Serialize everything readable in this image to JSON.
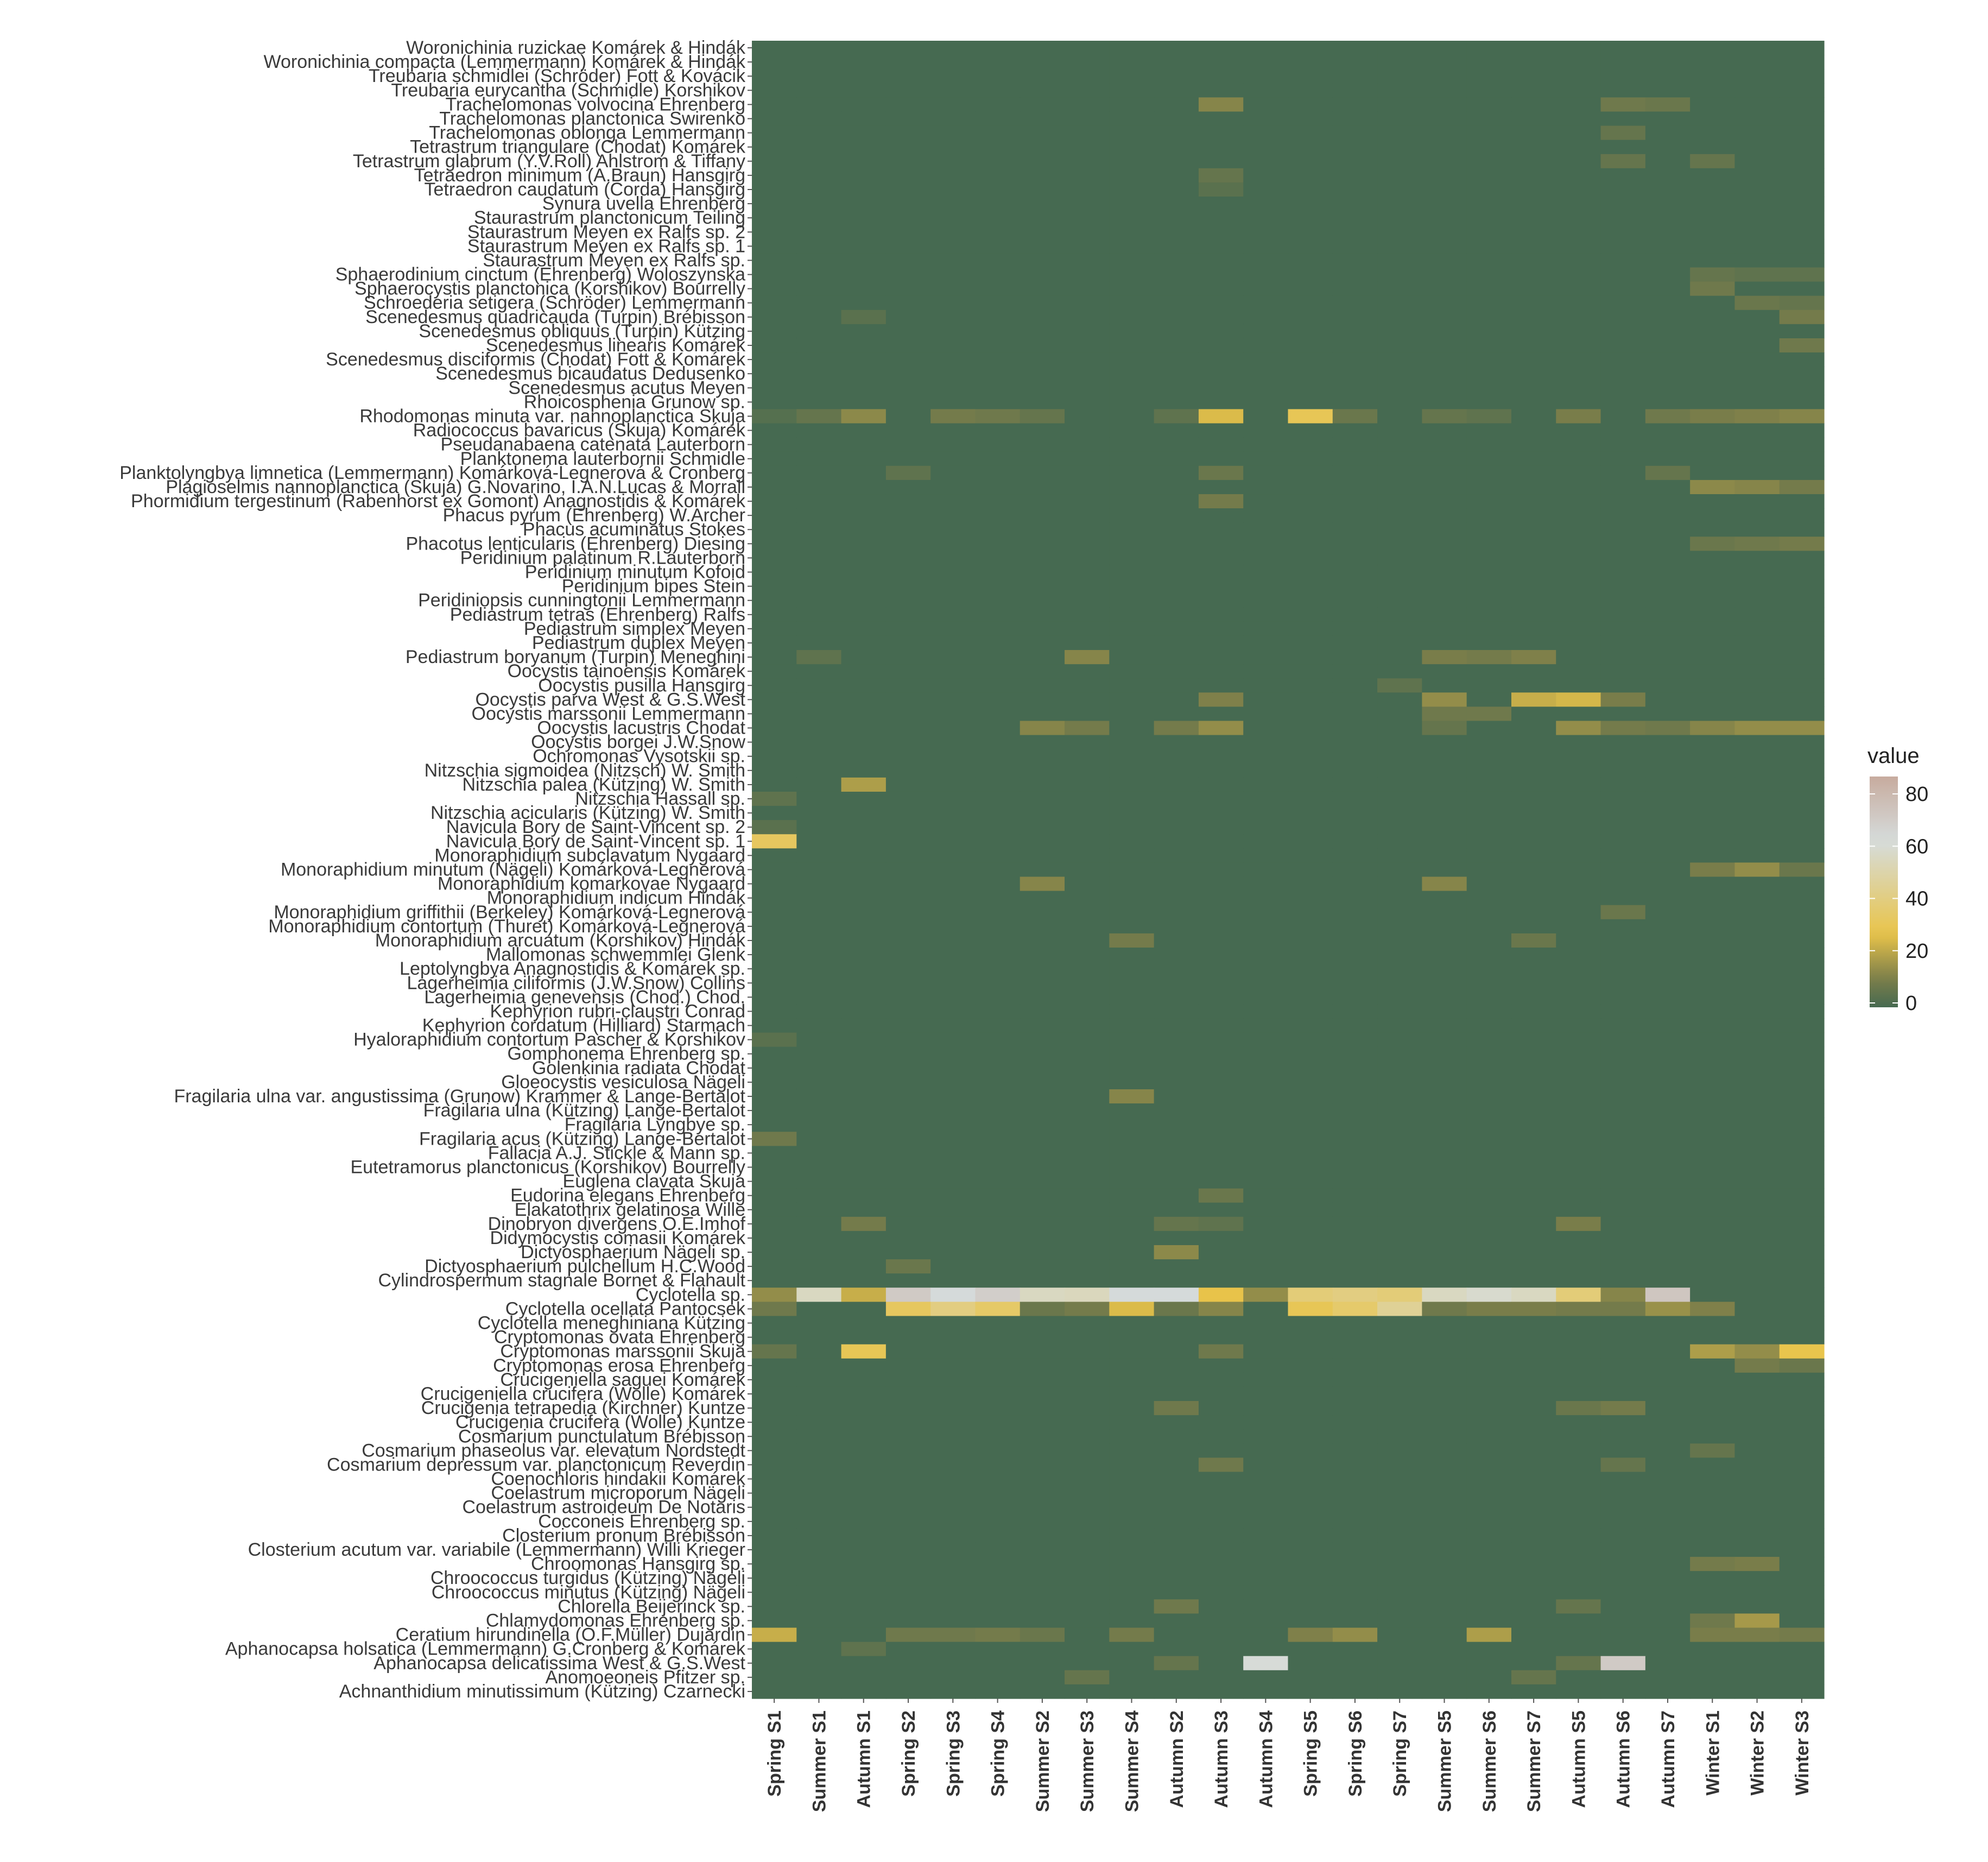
{
  "chart_data": {
    "type": "heatmap",
    "title": "",
    "xlabel": "",
    "ylabel": "",
    "x": [
      "Spring S1",
      "Summer S1",
      "Autumn S1",
      "Spring S2",
      "Spring S3",
      "Spring S4",
      "Summer S2",
      "Summer S3",
      "Summer S4",
      "Autumn S2",
      "Autumn S3",
      "Autumn S4",
      "Spring S5",
      "Spring S6",
      "Spring S7",
      "Summer S5",
      "Summer S6",
      "Summer S7",
      "Autumn S5",
      "Autumn S6",
      "Autumn S7",
      "Winter S1",
      "Winter S2",
      "Winter S3"
    ],
    "y": [
      "Woronichinia ruzickae Komárek & Hindák",
      "Woronichinia compacta (Lemmermann) Komárek & Hindák",
      "Treubaria schmidlei (Schröder) Fott & Kovácik",
      "Treubaria eurycantha (Schmidle) Korshikov",
      "Trachelomonas volvocina Ehrenberg",
      "Trachelomonas planctonica Swirenko",
      "Trachelomonas oblonga Lemmermann",
      "Tetrastrum triangulare (Chodat) Komárek",
      "Tetrastrum glabrum (Y.V.Roll) Ahlstrom & Tiffany",
      "Tetraedron minimum (A.Braun) Hansgirg",
      "Tetraedron caudatum (Corda) Hansgirg",
      "Synura uvella Ehrenberg",
      "Staurastrum planctonicum Teiling",
      "Staurastrum Meyen ex Ralfs sp. 2",
      "Staurastrum Meyen ex Ralfs sp. 1",
      "Staurastrum Meyen ex Ralfs sp.",
      "Sphaerodinium cinctum (Ehrenberg) Woloszynska",
      "Sphaerocystis planctonica (Korshikov) Bourrelly",
      "Schroederia setigera (Schröder) Lemmermann",
      "Scenedesmus quadricauda (Turpin) Brébisson",
      "Scenedesmus obliquus (Turpin) Kützing",
      "Scenedesmus linearis Komárek",
      "Scenedesmus disciformis (Chodat) Fott & Komárek",
      "Scenedesmus bicaudatus Dedusenko",
      "Scenedesmus acutus Meyen",
      "Rhoicosphenia Grunow sp.",
      "Rhodomonas minuta var. nannoplanctica Skuja",
      "Radiococcus bavaricus (Skuja) Komárek",
      "Pseudanabaena catenata Lauterborn",
      "Planktonema lauterbornii Schmidle",
      "Planktolyngbya limnetica (Lemmermann) Komárková-Legnerová & Cronberg",
      "Plagioselmis nannoplanctica (Skuja) G.Novarino, I.A.N.Lucas & Morrall",
      "Phormidium tergestinum (Rabenhorst ex Gomont) Anagnostidis & Komárek",
      "Phacus pyrum (Ehrenberg) W.Archer",
      "Phacus acuminatus Stokes",
      "Phacotus lenticularis (Ehrenberg) Diesing",
      "Peridinium palatinum R.Lauterborn",
      "Peridinium minutum Kofoid",
      "Peridinium bipes Stein",
      "Peridiniopsis cunningtonii Lemmermann",
      "Pediastrum tetras (Ehrenberg) Ralfs",
      "Pediastrum simplex Meyen",
      "Pediastrum duplex Meyen",
      "Pediastrum boryanum (Turpin) Meneghini",
      "Oocystis tainoensis Komárek",
      "Oocystis pusilla Hansgirg",
      "Oocystis parva West & G.S.West",
      "Oocystis marssonii Lemmermann",
      "Oocystis lacustris Chodat",
      "Oocystis borgei J.W.Snow",
      "Ochromonas Vysotskii sp.",
      "Nitzschia sigmoidea (Nitzsch) W. Smith",
      "Nitzschia palea (Kützing) W. Smith",
      "Nitzschia Hassall sp.",
      "Nitzschia acicularis (Kützing) W. Smith",
      "Navicula Bory de Saint-Vincent sp. 2",
      "Navicula Bory de Saint-Vincent sp. 1",
      "Monoraphidium subclavatum Nygaard",
      "Monoraphidium minutum (Nägeli) Komárková-Legnerová",
      "Monoraphidium komarkovae Nygaard",
      "Monoraphidium indicum Hindák",
      "Monoraphidium griffithii (Berkeley) Komárková-Legnerová",
      "Monoraphidium contortum (Thuret) Komárková-Legnerová",
      "Monoraphidium arcuatum (Korshikov) Hindák",
      "Mallomonas schwemmlei Glenk",
      "Leptolyngbya Anagnostidis & Komárek sp.",
      "Lagerheimia ciliformis (J.W.Snow) Collins",
      "Lagerheimia genevensis (Chod.) Chod.",
      "Kephyrion rubri-claustri Conrad",
      "Kephyrion cordatum (Hilliard) Starmach",
      "Hyaloraphidium contortum Pascher & Korshikov",
      "Gomphonema Ehrenberg sp.",
      "Golenkinia radiata Chodat",
      "Gloeocystis vesiculosa Nägeli",
      "Fragilaria ulna var. angustissima (Grunow) Krammer & Lange-Bertalot",
      "Fragilaria ulna (Kützing) Lange-Bertalot",
      "Fragilaria Lyngbye sp.",
      "Fragilaria acus (Kützing) Lange-Bertalot",
      "Fallacia A.J. Stickle & Mann sp.",
      "Eutetramorus planctonicus (Korshikov) Bourrelly",
      "Euglena clavata Skuja",
      "Eudorina elegans Ehrenberg",
      "Elakatothrix gelatinosa Wille",
      "Dinobryon divergens O.E.Imhof",
      "Didymocystis comasii Komárek",
      "Dictyosphaerium Nägeli sp.",
      "Dictyosphaerium pulchellum H.C.Wood",
      "Cylindrospermum stagnale Bornet & Flahault",
      "Cyclotella sp.",
      "Cyclotella ocellata Pantocsek",
      "Cyclotella meneghiniana Kützing",
      "Cryptomonas ovata Ehrenberg",
      "Cryptomonas marssonii Skuja",
      "Cryptomonas erosa Ehrenberg",
      "Crucigeniella saguei Komárek",
      "Crucigeniella crucifera (Wolle) Komárek",
      "Crucigenia tetrapedia (Kirchner) Kuntze",
      "Crucigenia crucifera (Wolle) Kuntze",
      "Cosmarium punctulatum Brébisson",
      "Cosmarium phaseolus var. elevatum Nordstedt",
      "Cosmarium depressum var. planctonicum Reverdin",
      "Coenochloris hindakii Komárek",
      "Coelastrum microporum Nägeli",
      "Coelastrum astroideum De Notaris",
      "Cocconeis Ehrenberg sp.",
      "Closterium pronum Brébisson",
      "Closterium acutum var. variabile (Lemmermann) Willi Krieger",
      "Chroomonas Hansgirg sp.",
      "Chroococcus turgidus (Kützing) Nägeli",
      "Chroococcus minutus (Kützing) Nägeli",
      "Chlorella Beijerinck sp.",
      "Chlamydomonas Ehrenberg sp.",
      "Ceratium hirundinella (O.F.Müller) Dujardin",
      "Aphanocapsa holsatica (Lemmermann) G.Cronberg & Komárek",
      "Aphanocapsa delicatissima West & G.S.West",
      "Anomoeoneis Pfitzer sp.",
      "Achnanthidium minutissimum (Kützing) Czarnecki"
    ],
    "default_value": 0,
    "cells": [
      [
        4,
        10,
        12,
        6
      ],
      [
        4,
        19,
        8,
        6
      ],
      [
        4,
        20,
        7,
        6
      ],
      [
        6,
        19,
        6,
        6
      ],
      [
        8,
        19,
        6,
        6
      ],
      [
        8,
        21,
        6,
        6
      ],
      [
        9,
        10,
        6,
        6
      ],
      [
        10,
        10,
        4,
        6
      ],
      [
        16,
        21,
        6,
        6
      ],
      [
        16,
        22,
        5,
        6
      ],
      [
        16,
        23,
        5,
        6
      ],
      [
        17,
        21,
        8,
        6
      ],
      [
        18,
        22,
        7,
        6
      ],
      [
        18,
        23,
        6,
        6
      ],
      [
        19,
        23,
        9,
        6
      ],
      [
        19,
        2,
        4,
        6
      ],
      [
        21,
        23,
        8,
        6
      ],
      [
        26,
        0,
        3,
        6
      ],
      [
        26,
        1,
        6,
        6
      ],
      [
        26,
        2,
        13,
        6
      ],
      [
        26,
        4,
        9,
        6
      ],
      [
        26,
        5,
        8,
        6
      ],
      [
        26,
        6,
        6,
        6
      ],
      [
        26,
        9,
        5,
        6
      ],
      [
        26,
        10,
        25,
        6
      ],
      [
        26,
        12,
        30,
        6
      ],
      [
        26,
        13,
        7,
        6
      ],
      [
        26,
        15,
        6,
        6
      ],
      [
        26,
        16,
        5,
        6
      ],
      [
        26,
        18,
        10,
        6
      ],
      [
        26,
        20,
        8,
        6
      ],
      [
        26,
        21,
        10,
        6
      ],
      [
        26,
        22,
        11,
        6
      ],
      [
        26,
        23,
        12,
        6
      ],
      [
        30,
        3,
        5,
        6
      ],
      [
        30,
        10,
        7,
        6
      ],
      [
        30,
        20,
        6,
        6
      ],
      [
        31,
        21,
        13,
        6
      ],
      [
        31,
        22,
        12,
        6
      ],
      [
        31,
        23,
        9,
        6
      ],
      [
        32,
        10,
        9,
        6
      ],
      [
        35,
        21,
        7,
        6
      ],
      [
        35,
        22,
        8,
        6
      ],
      [
        35,
        23,
        9,
        6
      ],
      [
        43,
        1,
        5,
        6
      ],
      [
        43,
        7,
        12,
        6
      ],
      [
        43,
        15,
        10,
        6
      ],
      [
        43,
        16,
        9,
        6
      ],
      [
        43,
        17,
        11,
        6
      ],
      [
        45,
        14,
        5,
        6
      ],
      [
        46,
        10,
        11,
        6
      ],
      [
        46,
        15,
        14,
        6
      ],
      [
        46,
        17,
        22,
        6
      ],
      [
        46,
        18,
        24,
        6
      ],
      [
        46,
        19,
        10,
        6
      ],
      [
        47,
        15,
        8,
        6
      ],
      [
        47,
        16,
        8,
        6
      ],
      [
        48,
        6,
        12,
        6
      ],
      [
        48,
        7,
        9,
        6
      ],
      [
        48,
        9,
        9,
        6
      ],
      [
        48,
        10,
        14,
        6
      ],
      [
        48,
        15,
        6,
        6
      ],
      [
        48,
        18,
        14,
        6
      ],
      [
        48,
        19,
        9,
        6
      ],
      [
        48,
        20,
        8,
        6
      ],
      [
        48,
        21,
        12,
        6
      ],
      [
        48,
        22,
        14,
        6
      ],
      [
        48,
        23,
        14,
        6
      ],
      [
        52,
        2,
        18,
        6
      ],
      [
        53,
        0,
        5,
        6
      ],
      [
        55,
        0,
        4,
        6
      ],
      [
        56,
        0,
        32,
        6
      ],
      [
        58,
        21,
        10,
        6
      ],
      [
        58,
        22,
        14,
        6
      ],
      [
        58,
        23,
        7,
        6
      ],
      [
        59,
        6,
        12,
        6
      ],
      [
        59,
        15,
        12,
        6
      ],
      [
        61,
        19,
        7,
        6
      ],
      [
        63,
        8,
        9,
        6
      ],
      [
        63,
        17,
        7,
        6
      ],
      [
        70,
        0,
        4,
        6
      ],
      [
        74,
        8,
        12,
        6
      ],
      [
        77,
        0,
        8,
        6
      ],
      [
        81,
        10,
        7,
        6
      ],
      [
        83,
        2,
        9,
        6
      ],
      [
        83,
        9,
        6,
        6
      ],
      [
        83,
        10,
        5,
        6
      ],
      [
        83,
        18,
        10,
        6
      ],
      [
        85,
        9,
        13,
        6
      ],
      [
        86,
        3,
        7,
        6
      ],
      [
        88,
        0,
        14,
        6
      ],
      [
        88,
        1,
        55,
        6
      ],
      [
        88,
        2,
        22,
        6
      ],
      [
        88,
        3,
        70,
        6
      ],
      [
        88,
        4,
        62,
        6
      ],
      [
        88,
        5,
        68,
        6
      ],
      [
        88,
        6,
        55,
        6
      ],
      [
        88,
        7,
        54,
        6
      ],
      [
        88,
        8,
        62,
        6
      ],
      [
        88,
        9,
        62,
        6
      ],
      [
        88,
        10,
        27,
        6
      ],
      [
        88,
        11,
        14,
        6
      ],
      [
        88,
        12,
        38,
        6
      ],
      [
        88,
        13,
        40,
        6
      ],
      [
        88,
        14,
        38,
        6
      ],
      [
        88,
        15,
        55,
        6
      ],
      [
        88,
        16,
        58,
        6
      ],
      [
        88,
        17,
        55,
        6
      ],
      [
        88,
        18,
        38,
        6
      ],
      [
        88,
        19,
        12,
        6
      ],
      [
        88,
        20,
        72,
        6
      ],
      [
        89,
        0,
        8,
        6
      ],
      [
        89,
        3,
        32,
        6
      ],
      [
        89,
        4,
        40,
        6
      ],
      [
        89,
        5,
        34,
        6
      ],
      [
        89,
        6,
        7,
        6
      ],
      [
        89,
        7,
        9,
        6
      ],
      [
        89,
        8,
        25,
        6
      ],
      [
        89,
        9,
        7,
        6
      ],
      [
        89,
        10,
        12,
        6
      ],
      [
        89,
        12,
        30,
        6
      ],
      [
        89,
        13,
        35,
        6
      ],
      [
        89,
        14,
        45,
        6
      ],
      [
        89,
        15,
        8,
        6
      ],
      [
        89,
        16,
        10,
        6
      ],
      [
        89,
        17,
        10,
        6
      ],
      [
        89,
        18,
        9,
        6
      ],
      [
        89,
        19,
        9,
        6
      ],
      [
        89,
        20,
        15,
        6
      ],
      [
        89,
        21,
        11,
        6
      ],
      [
        92,
        0,
        6,
        6
      ],
      [
        92,
        2,
        30,
        6
      ],
      [
        92,
        10,
        8,
        6
      ],
      [
        92,
        21,
        18,
        6
      ],
      [
        92,
        22,
        14,
        6
      ],
      [
        92,
        23,
        28,
        6
      ],
      [
        93,
        22,
        9,
        6
      ],
      [
        93,
        23,
        7,
        6
      ],
      [
        96,
        9,
        8,
        6
      ],
      [
        96,
        18,
        7,
        6
      ],
      [
        96,
        19,
        9,
        6
      ],
      [
        99,
        21,
        6,
        6
      ],
      [
        100,
        10,
        8,
        6
      ],
      [
        100,
        19,
        6,
        6
      ],
      [
        107,
        21,
        9,
        6
      ],
      [
        107,
        22,
        10,
        6
      ],
      [
        110,
        9,
        8,
        6
      ],
      [
        110,
        18,
        6,
        6
      ],
      [
        112,
        0,
        22,
        6
      ],
      [
        112,
        3,
        8,
        6
      ],
      [
        112,
        4,
        8,
        6
      ],
      [
        112,
        5,
        9,
        6
      ],
      [
        112,
        6,
        7,
        6
      ],
      [
        112,
        8,
        9,
        6
      ],
      [
        112,
        12,
        11,
        6
      ],
      [
        112,
        13,
        14,
        6
      ],
      [
        112,
        16,
        18,
        6
      ],
      [
        112,
        21,
        10,
        6
      ],
      [
        112,
        22,
        10,
        6
      ],
      [
        112,
        23,
        9,
        6
      ],
      [
        111,
        22,
        17,
        6
      ],
      [
        111,
        21,
        8,
        6
      ],
      [
        113,
        2,
        5,
        6
      ],
      [
        114,
        11,
        60,
        6
      ],
      [
        114,
        19,
        70,
        6
      ],
      [
        114,
        9,
        6,
        6
      ],
      [
        114,
        18,
        6,
        6
      ],
      [
        115,
        7,
        6,
        6
      ],
      [
        115,
        17,
        6,
        6
      ]
    ],
    "legend": {
      "title": "value",
      "ticks": [
        80,
        60,
        40,
        20,
        0
      ],
      "range": [
        0,
        85
      ],
      "placement": "right",
      "colors": [
        "#466a51",
        "#7a7d4a",
        "#e9c44a",
        "#d6dcdc",
        "#c7ab9e"
      ]
    },
    "grid": false
  }
}
